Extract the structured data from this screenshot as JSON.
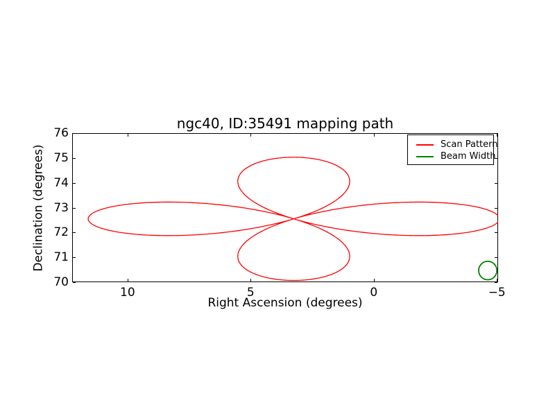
{
  "chart_data": {
    "type": "line",
    "title": "ngc40, ID:35491 mapping path",
    "xlabel": "Right Ascension (degrees)",
    "ylabel": "Declination (degrees)",
    "background_color": "#ffffff",
    "axis_color": "#000000",
    "grid": false,
    "xlim": [
      12.25,
      -5.05
    ],
    "ylim": [
      70,
      76
    ],
    "x_axis_inverted": true,
    "xticks": {
      "values": [
        10,
        5,
        0,
        -5
      ],
      "labels": [
        "10",
        "5",
        "0",
        "−5"
      ]
    },
    "yticks": {
      "values": [
        70,
        71,
        72,
        73,
        74,
        75,
        76
      ],
      "labels": [
        "70",
        "71",
        "72",
        "73",
        "74",
        "75",
        "76"
      ]
    },
    "series": [
      {
        "name": "Scan Pattern",
        "color": "#ff0000",
        "curve_type": "rose",
        "petals": 4,
        "center_ra": 3.25,
        "center_dec": 72.55,
        "amp_ra": 8.35,
        "amp_dec": 2.48,
        "line_width": 1.3
      }
    ],
    "beam": {
      "name": "Beam Width",
      "color": "#008000",
      "center_ra": -4.63,
      "center_dec": 70.47,
      "radius_deg": 0.37,
      "line_width": 1.8
    },
    "legend": {
      "position": "upper right",
      "entries": [
        {
          "label": "Scan Pattern",
          "color": "#ff0000"
        },
        {
          "label": "Beam Width",
          "color": "#008000"
        }
      ]
    }
  }
}
